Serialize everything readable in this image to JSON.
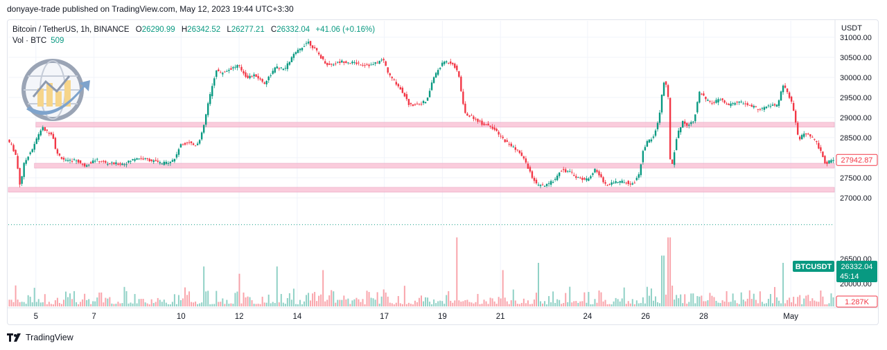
{
  "header": {
    "published": "donyaye-trade published on TradingView.com, May 12, 2023 19:44 UTC+3:30"
  },
  "legend": {
    "symbol": "Bitcoin / TetherUS, 1h, BINANCE",
    "o_label": "O",
    "o_value": "26290.99",
    "h_label": "H",
    "h_value": "26342.52",
    "l_label": "L",
    "l_value": "26277.21",
    "c_label": "C",
    "c_value": "26332.04",
    "change": "+41.06 (+0.16%)",
    "vol_label": "Vol · BTC",
    "vol_value": "509"
  },
  "axis": {
    "unit": "USDT"
  },
  "footer": {
    "brand": "TradingView"
  },
  "colors": {
    "up": "#089981",
    "down": "#f23645",
    "zone": "#f8bbd0",
    "tag_green": "#089981",
    "tag_red": "#f23645"
  },
  "chart_data": {
    "type": "candlestick",
    "title": "Bitcoin / TetherUS, 1h, BINANCE",
    "ylabel": "USDT",
    "ylim": [
      26000,
      31100
    ],
    "y_ticks": [
      27000,
      27500,
      28000,
      28500,
      29000,
      29500,
      30000,
      30500,
      31000
    ],
    "y_tick_labels": [
      "27000.00",
      "27500.00",
      "28000.00",
      "28500.00",
      "29000.00",
      "29500.00",
      "30000.00",
      "30500.00",
      "31000.00"
    ],
    "x_tick_labels": [
      "5",
      "7",
      "10",
      "12",
      "14",
      "17",
      "19",
      "21",
      "24",
      "26",
      "28",
      "May"
    ],
    "x_tick_positions": [
      4.9,
      6.9,
      9.9,
      11.9,
      13.9,
      16.9,
      18.9,
      20.9,
      23.9,
      25.9,
      27.9,
      30.9
    ],
    "x_range": [
      3.95,
      32.4
    ],
    "price_path": [
      [
        3.95,
        28450
      ],
      [
        4.1,
        28300
      ],
      [
        4.25,
        28050
      ],
      [
        4.4,
        27250
      ],
      [
        4.5,
        27800
      ],
      [
        4.7,
        28100
      ],
      [
        4.85,
        28250
      ],
      [
        5.0,
        28550
      ],
      [
        5.15,
        28750
      ],
      [
        5.3,
        28650
      ],
      [
        5.5,
        28600
      ],
      [
        5.65,
        28100
      ],
      [
        6.0,
        27900
      ],
      [
        6.3,
        27950
      ],
      [
        6.6,
        27800
      ],
      [
        7.0,
        27950
      ],
      [
        7.4,
        27850
      ],
      [
        8.0,
        27850
      ],
      [
        8.4,
        28000
      ],
      [
        8.8,
        27950
      ],
      [
        9.3,
        27850
      ],
      [
        9.7,
        27950
      ],
      [
        9.9,
        28300
      ],
      [
        10.2,
        28400
      ],
      [
        10.4,
        28300
      ],
      [
        10.6,
        28450
      ],
      [
        10.75,
        28900
      ],
      [
        10.85,
        29300
      ],
      [
        11.0,
        29750
      ],
      [
        11.15,
        30200
      ],
      [
        11.3,
        30100
      ],
      [
        11.6,
        30200
      ],
      [
        11.9,
        30300
      ],
      [
        12.2,
        30000
      ],
      [
        12.5,
        30050
      ],
      [
        12.8,
        29850
      ],
      [
        13.2,
        30250
      ],
      [
        13.5,
        30200
      ],
      [
        13.8,
        30550
      ],
      [
        14.1,
        30750
      ],
      [
        14.3,
        30900
      ],
      [
        14.6,
        30650
      ],
      [
        14.8,
        30450
      ],
      [
        15.0,
        30300
      ],
      [
        15.5,
        30400
      ],
      [
        16.0,
        30350
      ],
      [
        16.5,
        30300
      ],
      [
        16.9,
        30450
      ],
      [
        17.1,
        30050
      ],
      [
        17.3,
        29900
      ],
      [
        17.6,
        29600
      ],
      [
        17.8,
        29300
      ],
      [
        18.1,
        29350
      ],
      [
        18.4,
        29400
      ],
      [
        18.6,
        29950
      ],
      [
        18.8,
        30200
      ],
      [
        19.0,
        30400
      ],
      [
        19.3,
        30350
      ],
      [
        19.5,
        30050
      ],
      [
        19.7,
        29100
      ],
      [
        20.0,
        29000
      ],
      [
        20.3,
        28850
      ],
      [
        20.6,
        28800
      ],
      [
        20.9,
        28550
      ],
      [
        21.2,
        28350
      ],
      [
        21.5,
        28200
      ],
      [
        21.8,
        27900
      ],
      [
        22.0,
        27550
      ],
      [
        22.2,
        27300
      ],
      [
        22.5,
        27300
      ],
      [
        22.8,
        27450
      ],
      [
        23.0,
        27700
      ],
      [
        23.3,
        27650
      ],
      [
        23.6,
        27500
      ],
      [
        23.9,
        27450
      ],
      [
        24.2,
        27700
      ],
      [
        24.4,
        27500
      ],
      [
        24.6,
        27300
      ],
      [
        24.8,
        27400
      ],
      [
        25.2,
        27400
      ],
      [
        25.5,
        27350
      ],
      [
        25.7,
        27550
      ],
      [
        25.85,
        28200
      ],
      [
        26.0,
        28400
      ],
      [
        26.2,
        28500
      ],
      [
        26.4,
        29000
      ],
      [
        26.55,
        29900
      ],
      [
        26.7,
        29700
      ],
      [
        26.8,
        27600
      ],
      [
        27.0,
        28500
      ],
      [
        27.2,
        28900
      ],
      [
        27.4,
        28800
      ],
      [
        27.6,
        28950
      ],
      [
        27.8,
        29650
      ],
      [
        28.0,
        29450
      ],
      [
        28.2,
        29350
      ],
      [
        28.5,
        29450
      ],
      [
        28.8,
        29300
      ],
      [
        29.1,
        29400
      ],
      [
        29.5,
        29300
      ],
      [
        29.9,
        29200
      ],
      [
        30.2,
        29300
      ],
      [
        30.5,
        29300
      ],
      [
        30.65,
        29850
      ],
      [
        30.85,
        29550
      ],
      [
        31.0,
        29300
      ],
      [
        31.2,
        28450
      ],
      [
        31.4,
        28600
      ],
      [
        31.6,
        28550
      ],
      [
        31.8,
        28400
      ],
      [
        32.0,
        28100
      ],
      [
        32.15,
        27800
      ],
      [
        32.3,
        27950
      ],
      [
        32.4,
        27950
      ]
    ],
    "horizontal_zones": [
      {
        "start": 4.9,
        "end": 32.4,
        "y": 28820
      },
      {
        "start": 4.85,
        "end": 32.4,
        "y": 27800
      },
      {
        "start": 3.95,
        "end": 32.4,
        "y": 27200
      }
    ],
    "volume_spikes": [
      [
        10.7,
        0.55
      ],
      [
        11.9,
        0.45
      ],
      [
        13.2,
        0.55
      ],
      [
        14.8,
        0.5
      ],
      [
        19.4,
        0.95
      ],
      [
        21.0,
        0.5
      ],
      [
        22.2,
        0.6
      ],
      [
        26.5,
        0.7
      ],
      [
        26.7,
        0.95
      ],
      [
        30.65,
        0.6
      ]
    ],
    "last_price_line": 26332.04,
    "price_tags": [
      {
        "label": "27942.87",
        "value": 27942.87,
        "style": "outline-red"
      },
      {
        "label": "26332.04",
        "sublabel": "45:14",
        "symbol": "BTCUSDT",
        "value": 26332.04,
        "style": "green"
      },
      {
        "label": "1.287K",
        "style": "outline-red"
      }
    ],
    "overlay_axis_labels": [
      "26500.00",
      "20000.00"
    ]
  }
}
